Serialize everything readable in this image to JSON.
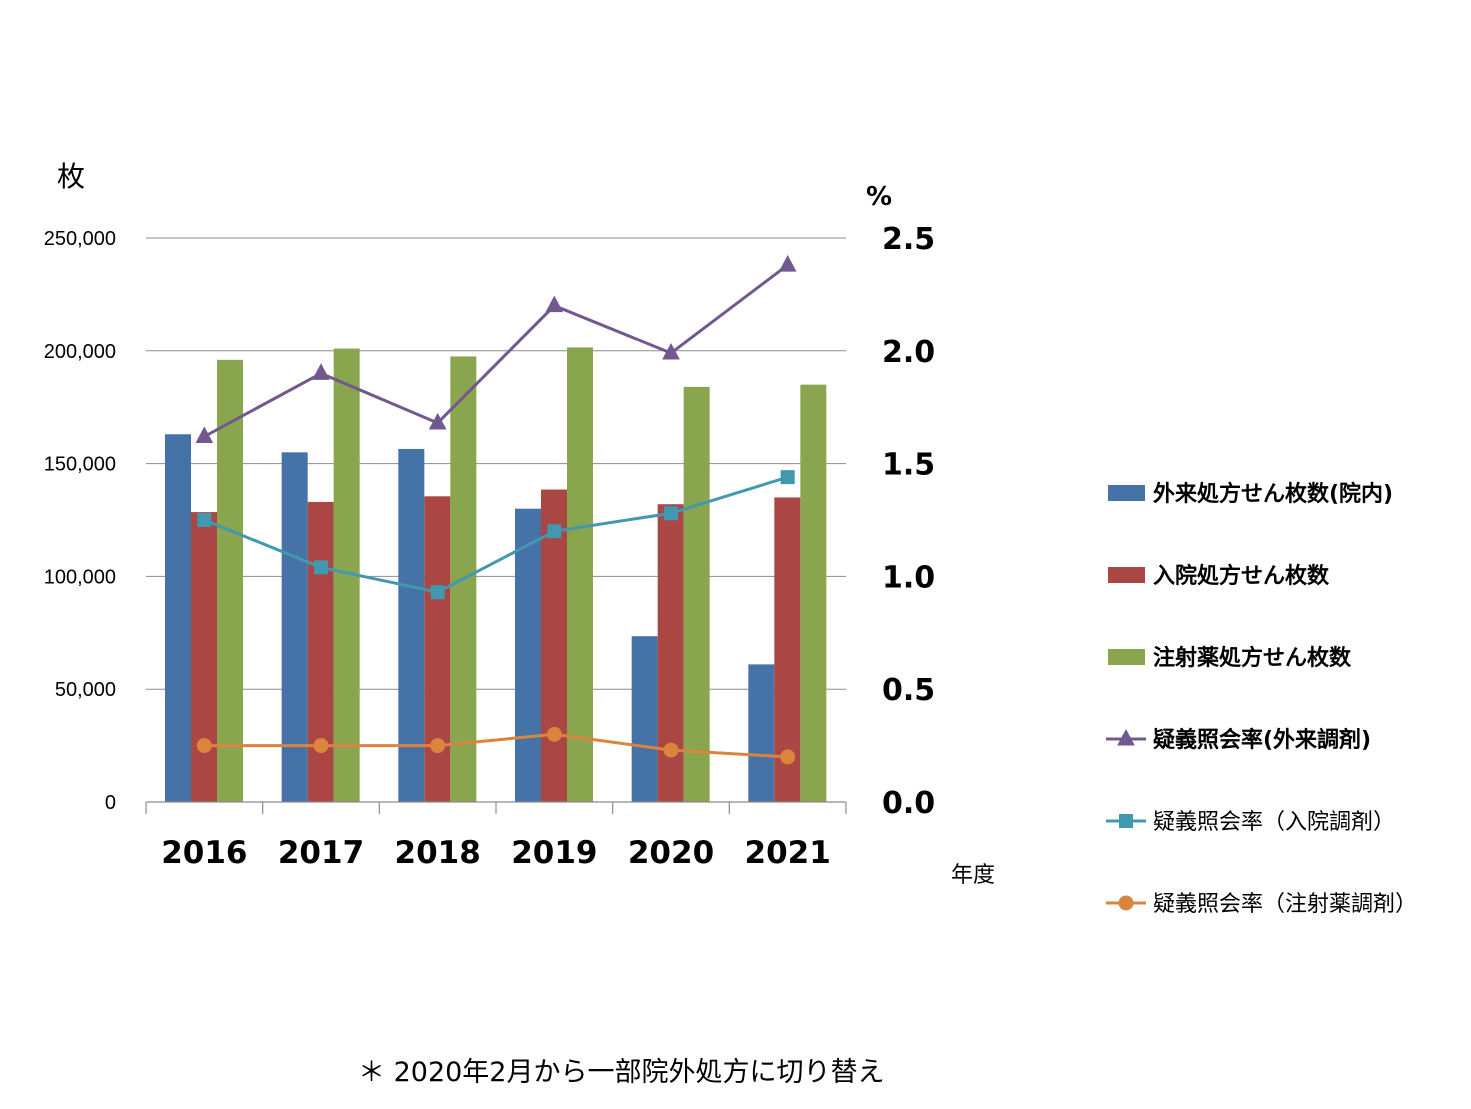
{
  "chart_data": {
    "type": "bar",
    "categories": [
      "2016",
      "2017",
      "2018",
      "2019",
      "2020",
      "2021"
    ],
    "left_axis": {
      "unit_label": "枚",
      "ylim": [
        0,
        250000
      ],
      "ticks": [
        "0",
        "50,000",
        "100,000",
        "150,000",
        "200,000",
        "250,000"
      ],
      "tick_values": [
        0,
        50000,
        100000,
        150000,
        200000,
        250000
      ]
    },
    "right_axis": {
      "unit_label": "%",
      "ylim": [
        0,
        2.5
      ],
      "ticks": [
        "0.0",
        "0.5",
        "1.0",
        "1.5",
        "2.0",
        "2.5"
      ],
      "tick_values": [
        0,
        0.5,
        1.0,
        1.5,
        2.0,
        2.5
      ]
    },
    "xlabel": "年度",
    "grid": true,
    "legend_position": "right",
    "series": [
      {
        "name": "外来処方せん枚数(院内)",
        "kind": "bar",
        "axis": "left",
        "color": "#4572A7",
        "values": [
          163000,
          155000,
          156500,
          130000,
          73500,
          61000
        ]
      },
      {
        "name": "入院処方せん枚数",
        "kind": "bar",
        "axis": "left",
        "color": "#AA4643",
        "values": [
          128500,
          133000,
          135500,
          138500,
          132000,
          135000
        ]
      },
      {
        "name": "注射薬処方せん枚数",
        "kind": "bar",
        "axis": "left",
        "color": "#89A54E",
        "values": [
          196000,
          201000,
          197500,
          201500,
          184000,
          185000
        ]
      },
      {
        "name": "疑義照会率(外来調剤)",
        "kind": "line",
        "axis": "right",
        "color": "#71588F",
        "marker": "triangle",
        "values": [
          1.62,
          1.9,
          1.68,
          2.2,
          1.99,
          2.38
        ]
      },
      {
        "name": "疑義照会率（入院調剤）",
        "kind": "line",
        "axis": "right",
        "color": "#4198AF",
        "marker": "square",
        "values": [
          1.25,
          1.04,
          0.93,
          1.2,
          1.28,
          1.44
        ]
      },
      {
        "name": "疑義照会率（注射薬調剤）",
        "kind": "line",
        "axis": "right",
        "color": "#DB843D",
        "marker": "circle",
        "values": [
          0.25,
          0.25,
          0.25,
          0.3,
          0.23,
          0.2
        ]
      }
    ]
  },
  "footnote": "＊ 2020年2月から一部院外処方に切り替え"
}
